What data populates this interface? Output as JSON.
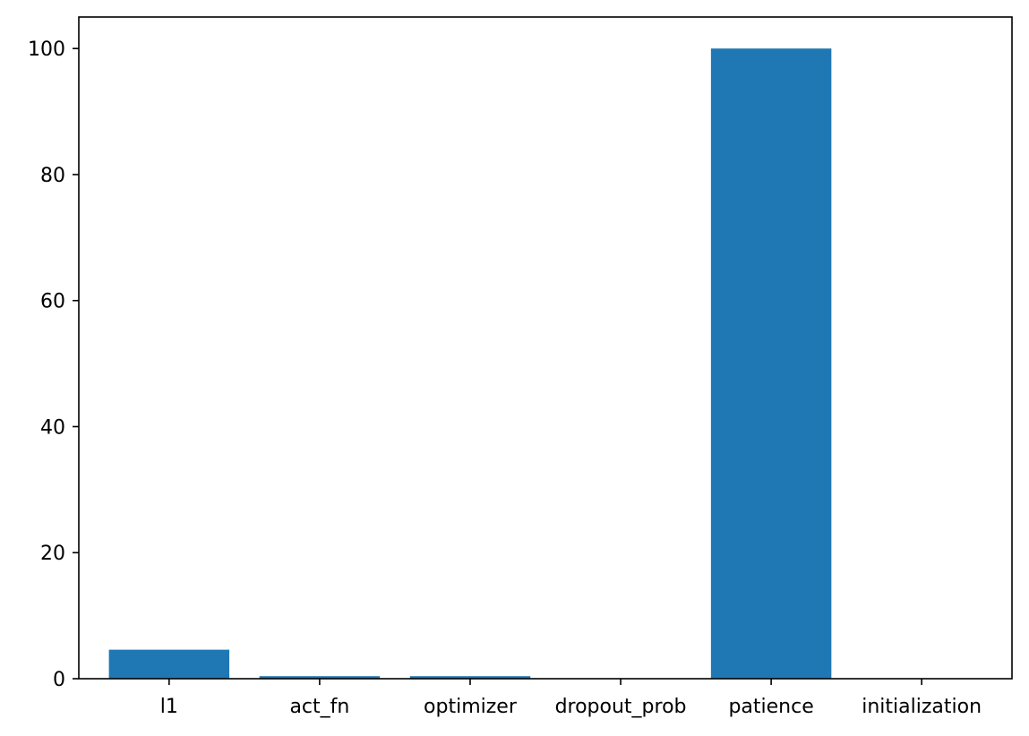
{
  "chart_data": {
    "type": "bar",
    "title": "",
    "xlabel": "",
    "ylabel": "",
    "categories": [
      "l1",
      "act_fn",
      "optimizer",
      "dropout_prob",
      "patience",
      "initialization"
    ],
    "values": [
      4.6,
      0.4,
      0.4,
      0.05,
      100,
      0.05
    ],
    "ylim": [
      0,
      105
    ],
    "yticks": [
      0,
      20,
      40,
      60,
      80,
      100
    ],
    "grid": false,
    "legend": "none",
    "bar_color": "#1f77b4"
  }
}
